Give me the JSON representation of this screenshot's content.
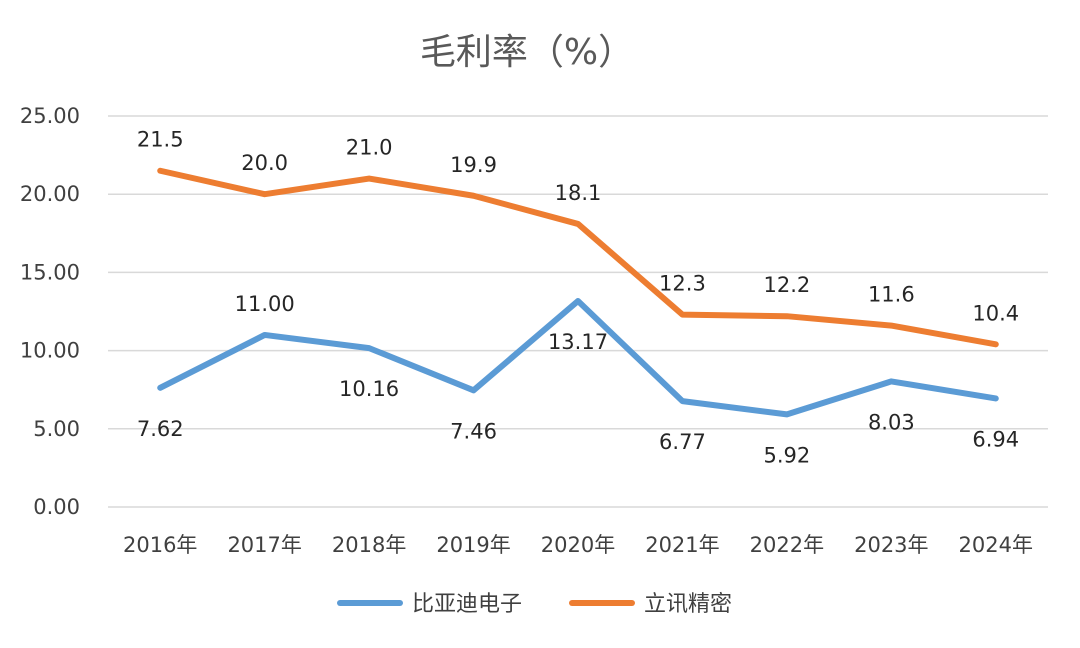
{
  "chart_data": {
    "type": "line",
    "title": "毛利率（%）",
    "xlabel": "",
    "ylabel": "",
    "categories": [
      "2016年",
      "2017年",
      "2018年",
      "2019年",
      "2020年",
      "2021年",
      "2022年",
      "2023年",
      "2024年"
    ],
    "ylim": [
      0,
      25
    ],
    "yticks": [
      "0.00",
      "5.00",
      "10.00",
      "15.00",
      "20.00",
      "25.00"
    ],
    "grid": true,
    "legend_position": "bottom",
    "series": [
      {
        "name": "比亚迪电子",
        "color": "#5b9bd5",
        "values": [
          7.62,
          11.0,
          10.16,
          7.46,
          13.17,
          6.77,
          5.92,
          8.03,
          6.94
        ],
        "labels": [
          "7.62",
          "11.00",
          "10.16",
          "7.46",
          "13.17",
          "6.77",
          "5.92",
          "8.03",
          "6.94"
        ]
      },
      {
        "name": "立讯精密",
        "color": "#ed7d31",
        "values": [
          21.5,
          20.0,
          21.0,
          19.9,
          18.1,
          12.3,
          12.2,
          11.6,
          10.4
        ],
        "labels": [
          "21.5",
          "20.0",
          "21.0",
          "19.9",
          "18.1",
          "12.3",
          "12.2",
          "11.6",
          "10.4"
        ]
      }
    ]
  }
}
